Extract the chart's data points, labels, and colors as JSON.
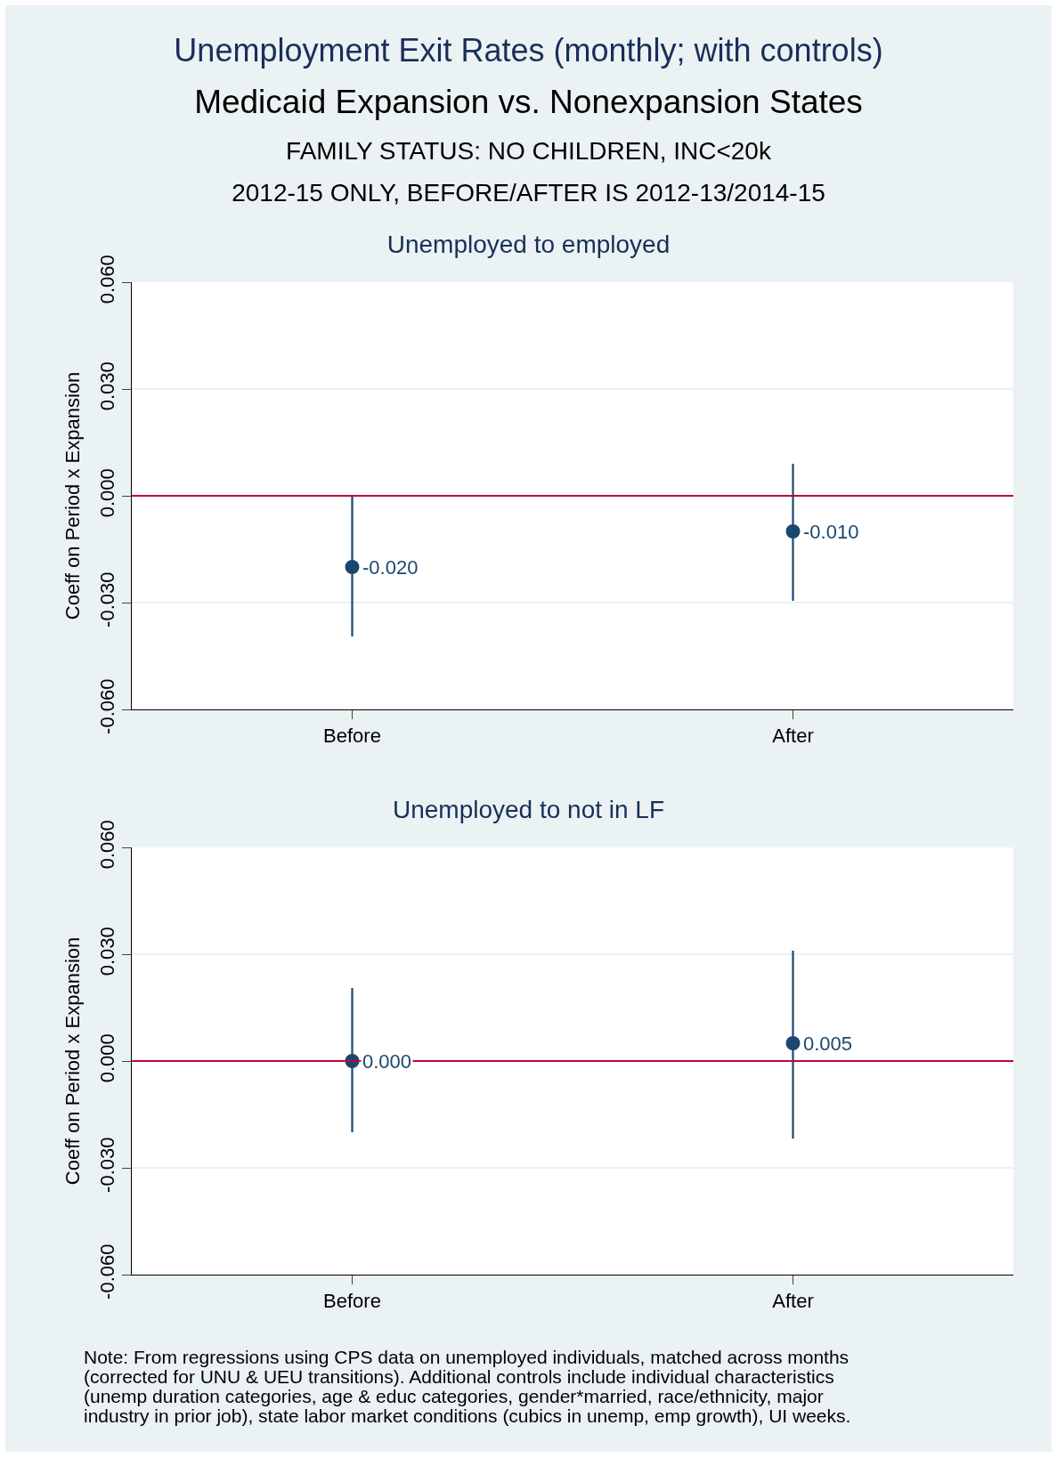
{
  "chart_data": [
    {
      "type": "scatter",
      "title": "Unemployed to employed",
      "ylabel": "Coeff on Period x Expansion",
      "annotations": [
        "Unemployment Exit Rates (monthly; with controls)",
        "Medicaid Expansion vs. Nonexpansion States",
        "FAMILY STATUS: NO CHILDREN, INC<20k",
        "2012-15 ONLY, BEFORE/AFTER IS 2012-13/2014-15"
      ],
      "categories": [
        "Before",
        "After"
      ],
      "values": [
        -0.02,
        -0.01
      ],
      "errors": [
        [
          -0.0395,
          0.0
        ],
        [
          -0.0295,
          0.009
        ]
      ],
      "value_labels": [
        "-0.020",
        "-0.010"
      ],
      "color": "#1a476f",
      "marker": "circle",
      "ylim": [
        -0.06,
        0.06
      ],
      "yticks": [
        {
          "value": -0.06,
          "label": "-0.060"
        },
        {
          "value": -0.03,
          "label": "-0.030"
        },
        {
          "value": 0,
          "label": "0.000"
        },
        {
          "value": 0.03,
          "label": "0.030"
        },
        {
          "value": 0.06,
          "label": "0.060"
        }
      ],
      "grid": "y",
      "ref_lines": [
        {
          "axis": "y",
          "value": 0,
          "color": "#c10534"
        }
      ]
    },
    {
      "type": "scatter",
      "title": "Unemployed to not in LF",
      "ylabel": "Coeff on Period x Expansion",
      "annotations": [
        "Note: From regressions using CPS data on unemployed individuals, matched across months\n(corrected for UNU & UEU transitions). Additional controls include individual characteristics\n(unemp duration categories, age & educ categories, gender*married, race/ethnicity, major\nindustry in prior job), state labor market conditions (cubics in unemp, emp growth), UI weeks."
      ],
      "categories": [
        "Before",
        "After"
      ],
      "values": [
        0.0,
        0.005
      ],
      "errors": [
        [
          -0.02,
          0.0205
        ],
        [
          -0.0218,
          0.031
        ]
      ],
      "value_labels": [
        "0.000",
        "0.005"
      ],
      "color": "#1a476f",
      "marker": "circle",
      "ylim": [
        -0.06,
        0.06
      ],
      "yticks": [
        {
          "value": -0.06,
          "label": "-0.060"
        },
        {
          "value": -0.03,
          "label": "-0.030"
        },
        {
          "value": 0,
          "label": "0.000"
        },
        {
          "value": 0.03,
          "label": "0.030"
        },
        {
          "value": 0.06,
          "label": "0.060"
        }
      ],
      "grid": "y",
      "ref_lines": [
        {
          "axis": "y",
          "value": 0,
          "color": "#c10534"
        }
      ]
    }
  ]
}
